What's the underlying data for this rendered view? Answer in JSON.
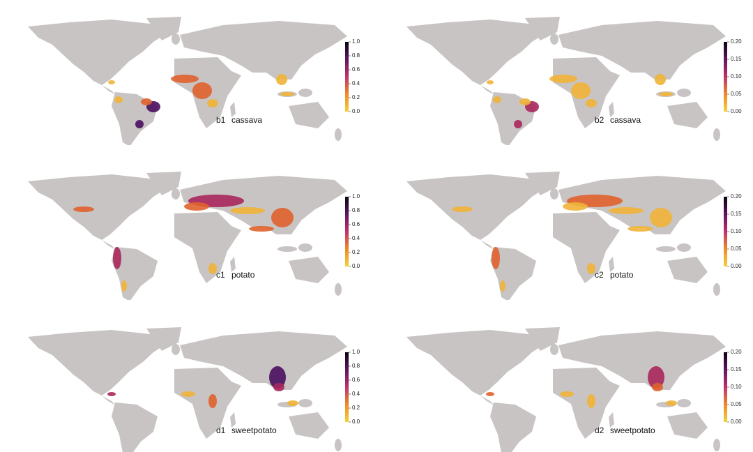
{
  "panels": [
    {
      "label": "b1",
      "crop": "cassava",
      "colorbar": {
        "lim": [
          0,
          1
        ],
        "ticks": [
          {
            "value": 0,
            "label": "0.0"
          },
          {
            "value": 0.2,
            "label": "0.2"
          },
          {
            "value": 0.4,
            "label": "0.4"
          },
          {
            "value": 0.6,
            "label": "0.6"
          },
          {
            "value": 0.8,
            "label": "0.8"
          },
          {
            "value": 1,
            "label": "1.0"
          }
        ]
      }
    },
    {
      "label": "b2",
      "crop": "cassava",
      "colorbar": {
        "lim": [
          0,
          0.2
        ],
        "ticks": [
          {
            "value": 0,
            "label": "0.00"
          },
          {
            "value": 0.05,
            "label": "0.05"
          },
          {
            "value": 0.1,
            "label": "0.10"
          },
          {
            "value": 0.15,
            "label": "0.15"
          },
          {
            "value": 0.2,
            "label": "0.20"
          }
        ]
      }
    },
    {
      "label": "c1",
      "crop": "potato",
      "colorbar": {
        "lim": [
          0,
          1
        ],
        "ticks": [
          {
            "value": 0,
            "label": "0.0"
          },
          {
            "value": 0.2,
            "label": "0.2"
          },
          {
            "value": 0.4,
            "label": "0.4"
          },
          {
            "value": 0.6,
            "label": "0.6"
          },
          {
            "value": 0.8,
            "label": "0.8"
          },
          {
            "value": 1,
            "label": "1.0"
          }
        ]
      }
    },
    {
      "label": "c2",
      "crop": "potato",
      "colorbar": {
        "lim": [
          0,
          0.2
        ],
        "ticks": [
          {
            "value": 0,
            "label": "0.00"
          },
          {
            "value": 0.05,
            "label": "0.05"
          },
          {
            "value": 0.1,
            "label": "0.10"
          },
          {
            "value": 0.15,
            "label": "0.15"
          },
          {
            "value": 0.2,
            "label": "0.20"
          }
        ]
      }
    },
    {
      "label": "d1",
      "crop": "sweetpotato",
      "colorbar": {
        "lim": [
          0,
          1
        ],
        "ticks": [
          {
            "value": 0,
            "label": "0.0"
          },
          {
            "value": 0.2,
            "label": "0.2"
          },
          {
            "value": 0.4,
            "label": "0.4"
          },
          {
            "value": 0.6,
            "label": "0.6"
          },
          {
            "value": 0.8,
            "label": "0.8"
          },
          {
            "value": 1,
            "label": "1.0"
          }
        ]
      }
    },
    {
      "label": "d2",
      "crop": "sweetpotato",
      "colorbar": {
        "lim": [
          0,
          0.2
        ],
        "ticks": [
          {
            "value": 0,
            "label": "0.00"
          },
          {
            "value": 0.05,
            "label": "0.05"
          },
          {
            "value": 0.1,
            "label": "0.10"
          },
          {
            "value": 0.15,
            "label": "0.15"
          },
          {
            "value": 0.2,
            "label": "0.20"
          }
        ]
      }
    }
  ]
}
